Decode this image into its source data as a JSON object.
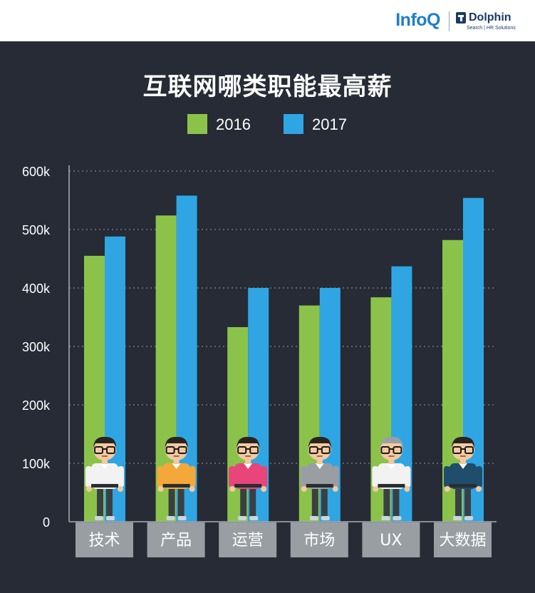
{
  "brand": {
    "infoq": "InfoQ",
    "dolphin_name": "Dolphin",
    "dolphin_sub": "Search | HR Solutions"
  },
  "chart_data": {
    "type": "bar",
    "title": "互联网哪类职能最高薪",
    "categories": [
      "技术",
      "产品",
      "运营",
      "市场",
      "UX",
      "大数据"
    ],
    "series": [
      {
        "name": "2016",
        "color": "#8bc34a",
        "values": [
          455,
          524,
          333,
          370,
          384,
          482
        ]
      },
      {
        "name": "2017",
        "color": "#2fa6e3",
        "values": [
          488,
          558,
          400,
          400,
          437,
          554
        ]
      }
    ],
    "yticks": [
      "0",
      "100k",
      "200k",
      "300k",
      "400k",
      "500k",
      "600k"
    ],
    "ylim": [
      0,
      600
    ],
    "value_unit": "k",
    "grid": true,
    "legend_position": "top-center",
    "figure_shirt_colors": [
      "#f2f2f2",
      "#f5a83a",
      "#e8457b",
      "#9a9ea3",
      "#f2f2f2",
      "#1f4d6b"
    ]
  }
}
